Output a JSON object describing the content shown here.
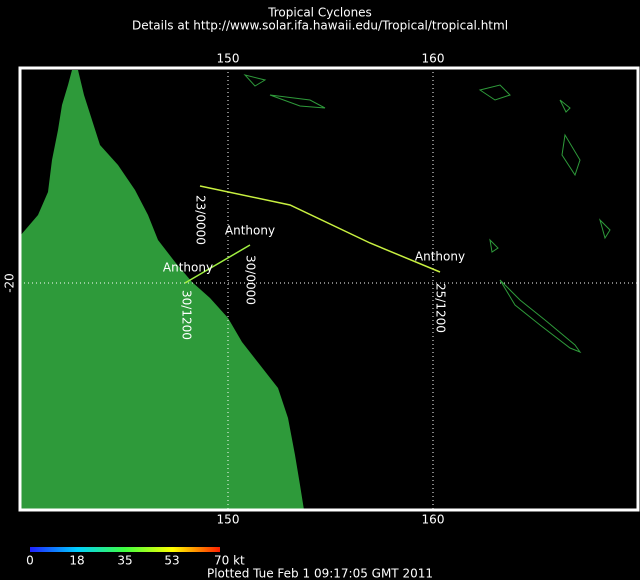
{
  "header": {
    "title": "Tropical Cyclones",
    "subtitle": "Details at http://www.solar.ifa.hawaii.edu/Tropical/tropical.html"
  },
  "map": {
    "top_ticks": [
      "150",
      "160"
    ],
    "bottom_ticks": [
      "150",
      "160"
    ],
    "left_ticks": [
      "-20"
    ],
    "storm_labels": [
      "Anthony",
      "Anthony",
      "Anthony"
    ],
    "time_labels": [
      "23/0000",
      "30/0000",
      "30/1200",
      "25/1200"
    ]
  },
  "colorbar": {
    "labels": [
      "0",
      "18",
      "35",
      "53",
      "70 kt"
    ]
  },
  "footer": {
    "plotted": "Plotted Tue Feb 1 09:17:05 GMT 2011"
  }
}
